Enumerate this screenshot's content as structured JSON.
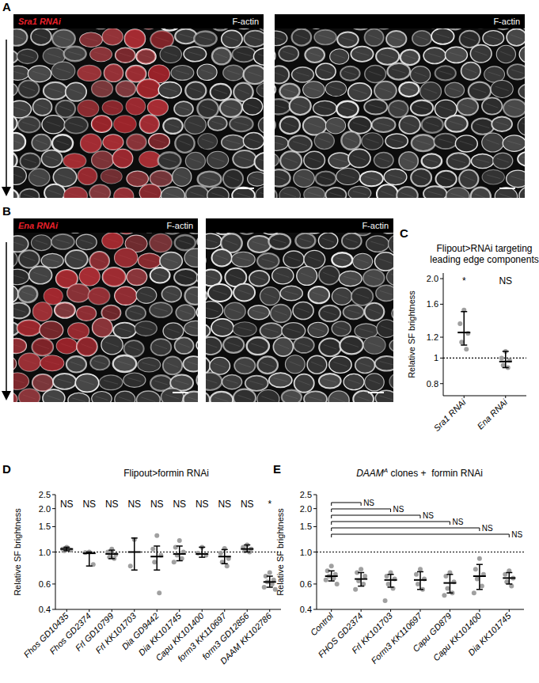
{
  "panels": [
    {
      "label": "A",
      "rnai": "Sra1 RNAi",
      "stain": "F-actin"
    },
    {
      "label": "B",
      "rnai": "Ena RNAi",
      "stain": "F-actin"
    }
  ],
  "chart_data": [
    {
      "type": "dot",
      "annotations": [
        "C"
      ],
      "title": [
        "Flipout>RNAi targeting",
        "leading edge components"
      ],
      "ylabel": "Relative SF brightness",
      "categories": [
        "Sra1 RNAi",
        "Ena RNAi"
      ],
      "values": [
        1.25,
        0.97
      ],
      "error": [
        [
          1.12,
          1.5
        ],
        [
          0.92,
          1.06
        ]
      ],
      "points": [
        [
          1.52,
          1.35,
          1.24,
          1.15,
          1.08
        ],
        [
          1.06,
          1.0,
          0.98,
          0.94,
          0.92
        ]
      ],
      "significance": [
        "*",
        "NS"
      ],
      "reference": 1,
      "log": "y",
      "ylim": [
        0.72,
        2.1
      ],
      "yticks": [
        0.8,
        1,
        1.2,
        1.6,
        {
          "value": 2,
          "label": "2.0"
        }
      ],
      "grid": false,
      "color": "#a0a0a0",
      "marker": "circle"
    },
    {
      "type": "dot",
      "annotations": [
        "D"
      ],
      "title": "Flipout>formin RNAi",
      "ylabel": "Relative SF brightness",
      "categories": [
        "Fhos GD10435",
        "Fhos GD2374",
        "Frl GD10799",
        "Frl KK101703",
        "Dia GD9442",
        "Dia KK101745",
        "Capu KK101400",
        "form3 KK110697",
        "form3 GD12856",
        "DAAM KK102786"
      ],
      "values": [
        1.05,
        0.98,
        0.97,
        1.0,
        0.93,
        0.97,
        0.97,
        0.93,
        1.05,
        0.62
      ],
      "error": [
        [
          1.02,
          1.08
        ],
        [
          0.8,
          1.0
        ],
        [
          0.9,
          1.03
        ],
        [
          0.75,
          1.25
        ],
        [
          0.75,
          1.1
        ],
        [
          0.87,
          1.1
        ],
        [
          0.92,
          1.08
        ],
        [
          0.83,
          1.04
        ],
        [
          1.0,
          1.12
        ],
        [
          0.57,
          0.68
        ]
      ],
      "points": [
        [
          1.08,
          1.05,
          1.03,
          1.02
        ],
        [
          1.0,
          0.99,
          0.82
        ],
        [
          1.05,
          1.0,
          0.96,
          0.92,
          0.9
        ],
        [
          1.22,
          0.8
        ],
        [
          1.3,
          1.05,
          0.95,
          0.85,
          0.52
        ],
        [
          1.2,
          1.08,
          1.0,
          0.95,
          0.9,
          0.85
        ],
        [
          1.08,
          0.98,
          0.95
        ],
        [
          1.06,
          0.98,
          0.9,
          0.85,
          0.8
        ],
        [
          1.12,
          1.08,
          1.05,
          1.02,
          1.0
        ],
        [
          0.72,
          0.68,
          0.64,
          0.62,
          0.6,
          0.57,
          0.55
        ]
      ],
      "significance": [
        "NS",
        "NS",
        "NS",
        "NS",
        "NS",
        "NS",
        "NS",
        "NS",
        "NS",
        "*"
      ],
      "reference": 1,
      "log": "y",
      "ylim": [
        0.4,
        2.5
      ],
      "yticks": [
        0.4,
        0.6,
        {
          "value": 1,
          "label": "1.0"
        },
        1.5,
        {
          "value": 2,
          "label": "2.0"
        },
        2.5
      ],
      "grid": false,
      "color": "#a0a0a0",
      "marker": "circle"
    },
    {
      "type": "dot",
      "annotations": [
        "E"
      ],
      "title": [
        {
          "text": "DAAM",
          "style": "italic"
        },
        {
          "text": "A",
          "style": "sup"
        },
        {
          "text": " clones +  formin RNAi",
          "style": "normal"
        }
      ],
      "ylabel": "Relative SF brightness",
      "categories": [
        "Control",
        "FHOS GD2374",
        "Frl KK101703",
        "Form3 KK110697",
        "Capu GD879",
        "Capu KK101400",
        "Dia KK101745"
      ],
      "values": [
        0.68,
        0.65,
        0.64,
        0.64,
        0.61,
        0.68,
        0.66
      ],
      "error": [
        [
          0.63,
          0.74
        ],
        [
          0.58,
          0.72
        ],
        [
          0.57,
          0.7
        ],
        [
          0.55,
          0.73
        ],
        [
          0.52,
          0.7
        ],
        [
          0.55,
          0.82
        ],
        [
          0.6,
          0.72
        ]
      ],
      "points": [
        [
          0.8,
          0.74,
          0.7,
          0.68,
          0.66,
          0.64,
          0.6
        ],
        [
          0.76,
          0.72,
          0.68,
          0.63,
          0.6,
          0.55
        ],
        [
          0.72,
          0.68,
          0.65,
          0.6,
          0.56,
          0.46
        ],
        [
          0.76,
          0.7,
          0.65,
          0.6,
          0.55
        ],
        [
          0.72,
          0.68,
          0.62,
          0.56,
          0.52,
          0.5
        ],
        [
          0.9,
          0.76,
          0.7,
          0.65,
          0.58,
          0.52
        ],
        [
          0.74,
          0.7,
          0.66,
          0.62,
          0.58
        ]
      ],
      "comparisons": [
        {
          "categories": [
            "Control",
            "FHOS GD2374"
          ],
          "label": "NS"
        },
        {
          "categories": [
            "Control",
            "Frl KK101703"
          ],
          "label": "NS"
        },
        {
          "categories": [
            "Control",
            "Form3 KK110697"
          ],
          "label": "NS"
        },
        {
          "categories": [
            "Control",
            "Capu GD879"
          ],
          "label": "NS"
        },
        {
          "categories": [
            "Control",
            "Capu KK101400"
          ],
          "label": "NS"
        },
        {
          "categories": [
            "Control",
            "Dia KK101745"
          ],
          "label": "NS"
        }
      ],
      "reference": 1,
      "log": "y",
      "ylim": [
        0.4,
        2.5
      ],
      "yticks": [
        0.4,
        0.6,
        {
          "value": 1,
          "label": "1.0"
        },
        1.5,
        {
          "value": 2,
          "label": "2.0"
        },
        2.5
      ],
      "grid": false,
      "color": "#a0a0a0",
      "marker": "circle"
    }
  ]
}
